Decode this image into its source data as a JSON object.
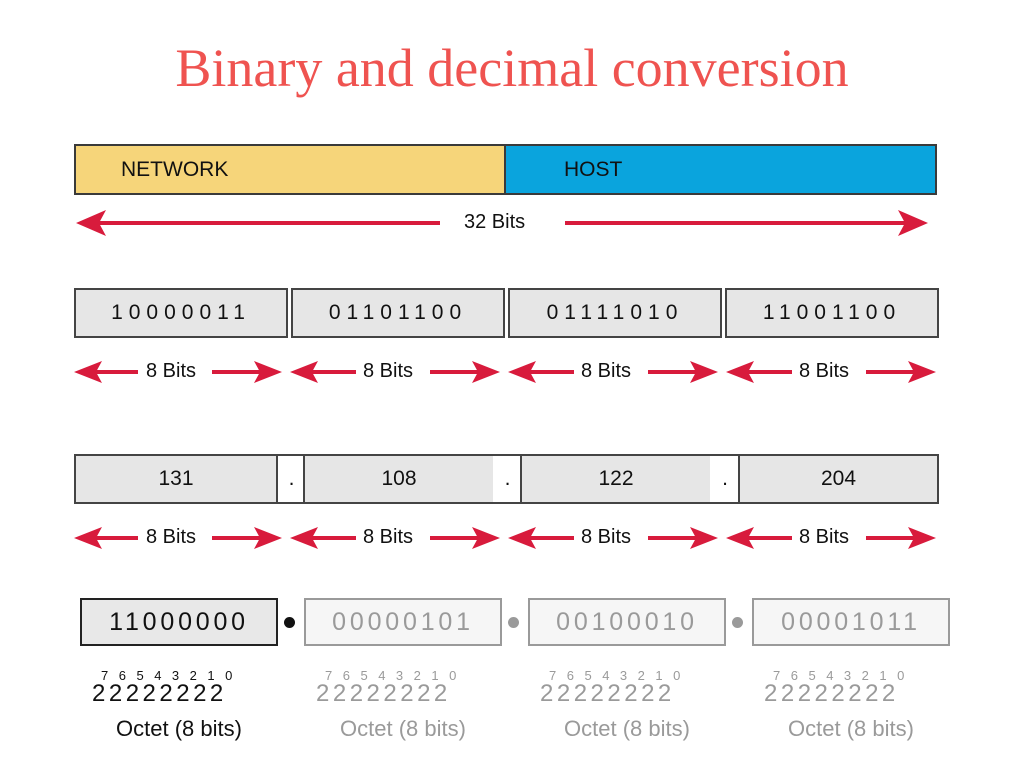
{
  "title": "Binary and decimal conversion",
  "bar": {
    "network_label": "NETWORK",
    "host_label": "HOST",
    "total_label": "32 Bits"
  },
  "binary_octets": [
    "10000011",
    "01101100",
    "01111010",
    "11001100"
  ],
  "decimal_octets": [
    "131",
    "108",
    "122",
    "204"
  ],
  "separator": ".",
  "octet_arrow_label": "8 Bits",
  "bottom_octets": [
    {
      "bits": "11000000",
      "powers_base": "22222222",
      "powers_exp": "76543210",
      "label": "Octet (8 bits)",
      "highlighted": true
    },
    {
      "bits": "00000101",
      "powers_base": "22222222",
      "powers_exp": "76543210",
      "label": "Octet (8 bits)",
      "highlighted": false
    },
    {
      "bits": "00100010",
      "powers_base": "22222222",
      "powers_exp": "76543210",
      "label": "Octet (8 bits)",
      "highlighted": false
    },
    {
      "bits": "00001011",
      "powers_base": "22222222",
      "powers_exp": "76543210",
      "label": "Octet (8 bits)",
      "highlighted": false
    }
  ],
  "colors": {
    "title": "#ef5350",
    "network": "#f6d57a",
    "host": "#0aa4dd",
    "arrow": "#d81b3c",
    "dim": "#9a9a9a"
  }
}
